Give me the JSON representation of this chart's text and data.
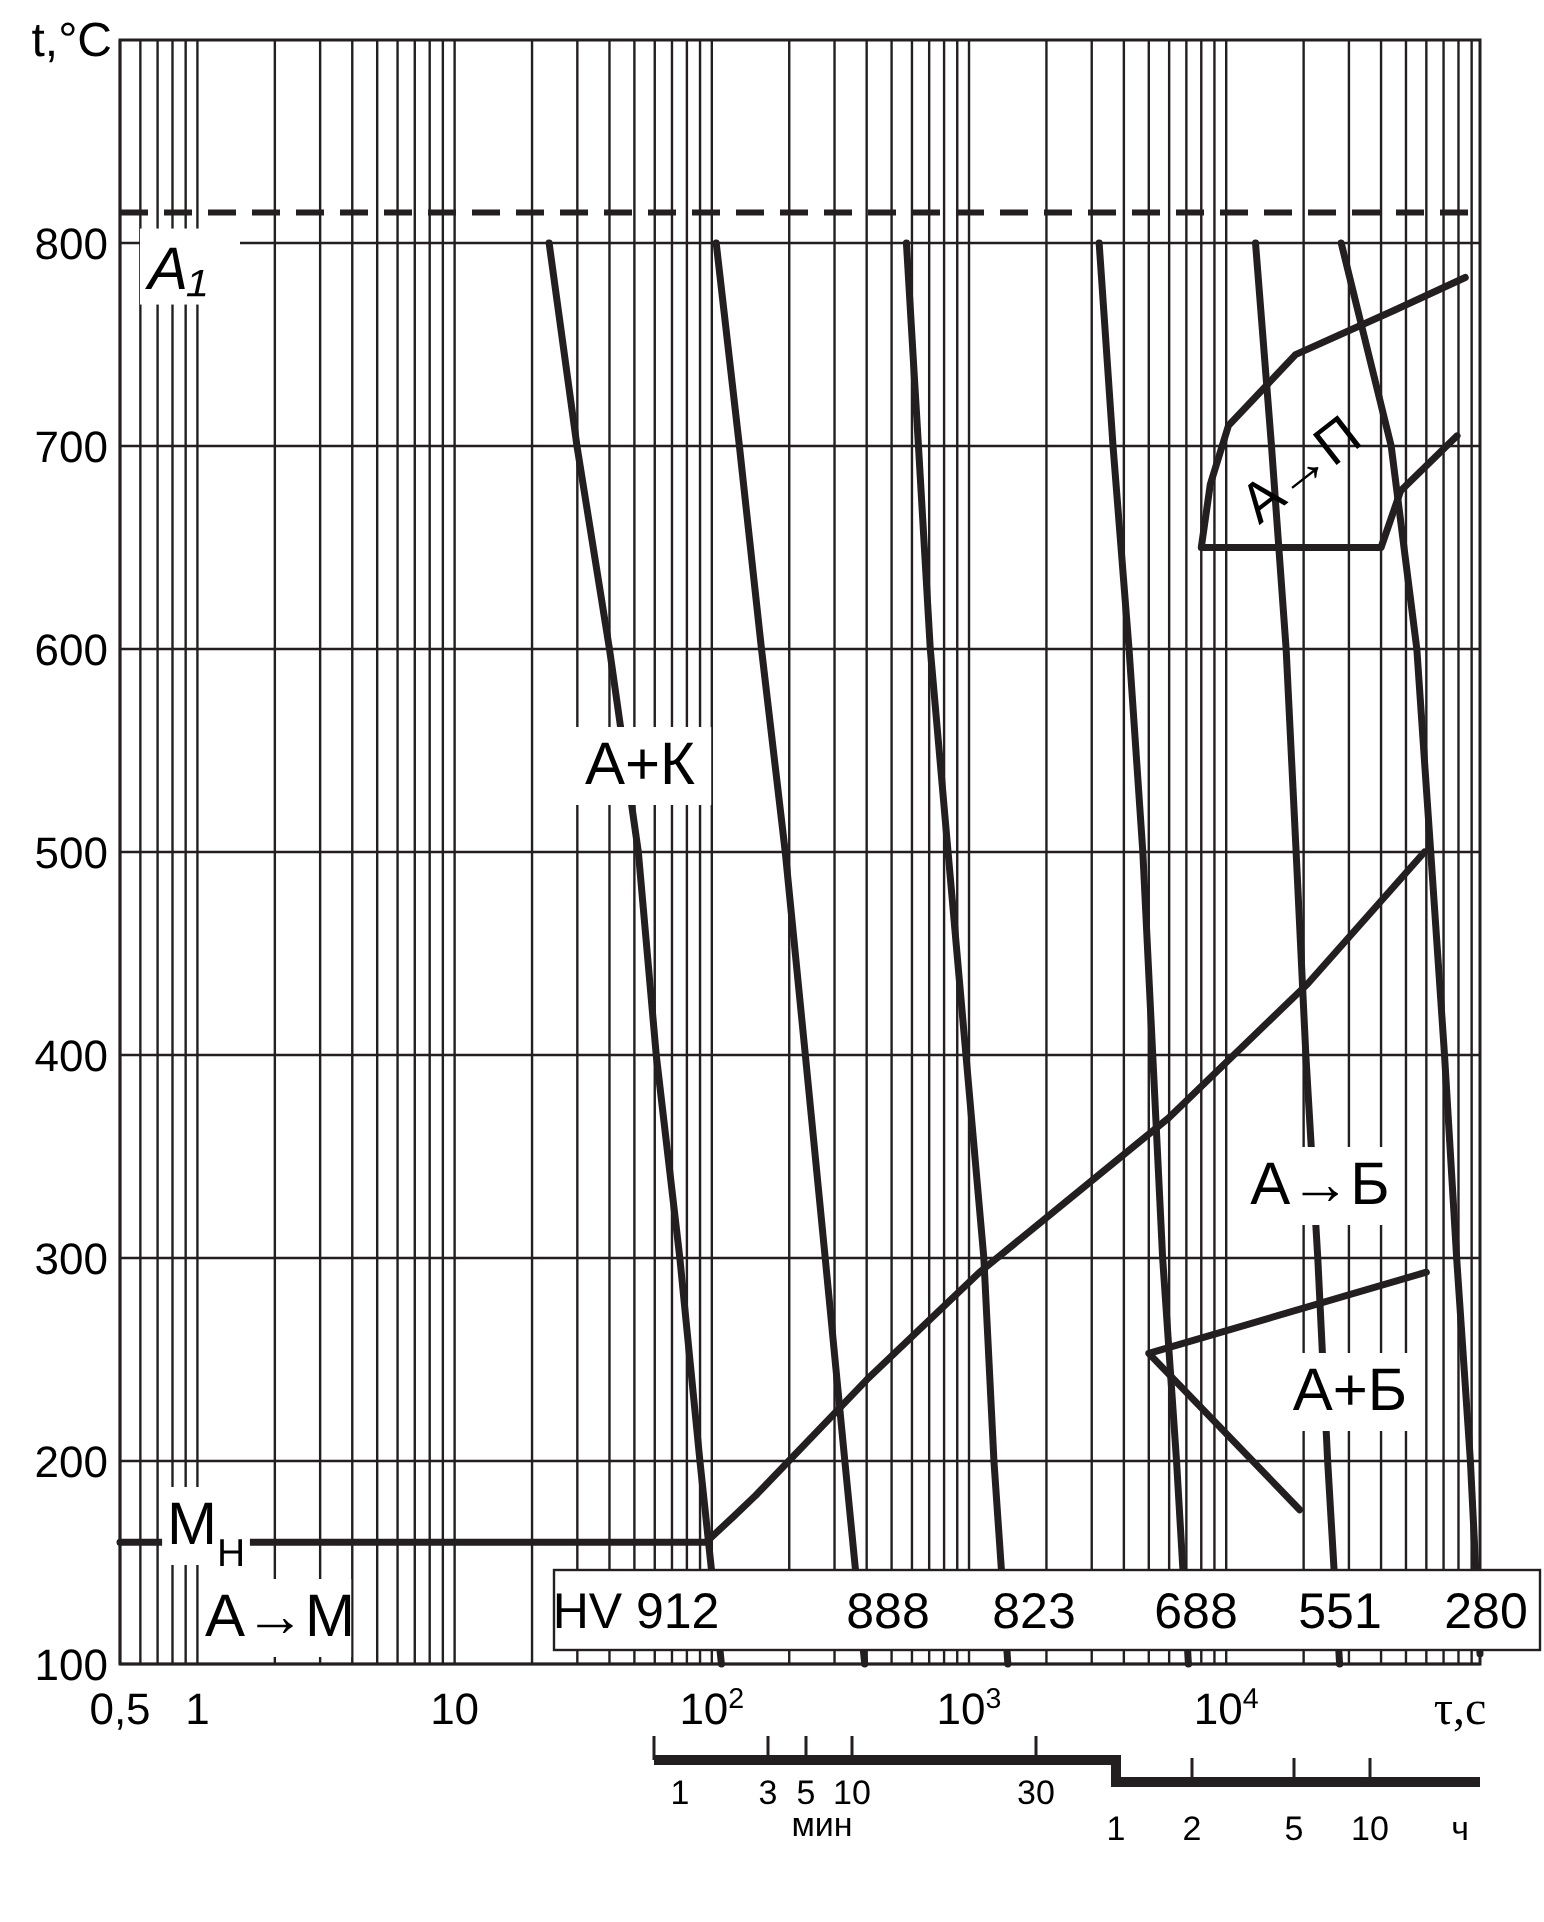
{
  "chart_data": {
    "type": "line",
    "xlabel": "τ,с",
    "ylabel": "t,°C",
    "log": "x",
    "grid": true,
    "marker": "none",
    "line_style": "solid",
    "xlim": [
      0.5,
      97000
    ],
    "ylim": [
      100,
      900
    ],
    "xticks": [
      {
        "value": 0.5,
        "label": "0,5"
      },
      {
        "value": 0.6,
        "label": null
      },
      {
        "value": 0.7,
        "label": null
      },
      {
        "value": 0.8,
        "label": null
      },
      {
        "value": 0.9,
        "label": null
      },
      1,
      {
        "value": 2,
        "label": null
      },
      {
        "value": 3,
        "label": null
      },
      {
        "value": 4,
        "label": null
      },
      {
        "value": 5,
        "label": null
      },
      {
        "value": 6,
        "label": null
      },
      {
        "value": 7,
        "label": null
      },
      {
        "value": 8,
        "label": null
      },
      {
        "value": 9,
        "label": null
      },
      10,
      {
        "value": 20,
        "label": null
      },
      {
        "value": 30,
        "label": null
      },
      {
        "value": 40,
        "label": null
      },
      {
        "value": 50,
        "label": null
      },
      {
        "value": 60,
        "label": null
      },
      {
        "value": 70,
        "label": null
      },
      {
        "value": 80,
        "label": null
      },
      {
        "value": 90,
        "label": null
      },
      {
        "value": 100,
        "label": "10$^{2}$"
      },
      {
        "value": 200,
        "label": null
      },
      {
        "value": 300,
        "label": null
      },
      {
        "value": 400,
        "label": null
      },
      {
        "value": 500,
        "label": null
      },
      {
        "value": 600,
        "label": null
      },
      {
        "value": 700,
        "label": null
      },
      {
        "value": 800,
        "label": null
      },
      {
        "value": 900,
        "label": null
      },
      {
        "value": 1000,
        "label": "10$^{3}$"
      },
      {
        "value": 2000,
        "label": null
      },
      {
        "value": 3000,
        "label": null
      },
      {
        "value": 4000,
        "label": null
      },
      {
        "value": 5000,
        "label": null
      },
      {
        "value": 6000,
        "label": null
      },
      {
        "value": 7000,
        "label": null
      },
      {
        "value": 8000,
        "label": null
      },
      {
        "value": 9000,
        "label": null
      },
      {
        "value": 10000,
        "label": "10$^{4}$"
      },
      {
        "value": 20000,
        "label": null
      },
      {
        "value": 30000,
        "label": null
      },
      {
        "value": 40000,
        "label": null
      },
      {
        "value": 50000,
        "label": null
      },
      {
        "value": 60000,
        "label": null
      },
      {
        "value": 70000,
        "label": null
      },
      {
        "value": 80000,
        "label": null
      },
      {
        "value": 90000,
        "label": null
      }
    ],
    "yticks": [
      100,
      200,
      300,
      400,
      500,
      600,
      700,
      800
    ],
    "ref_lines": [
      {
        "axis": "y",
        "value": 815,
        "label": "A₁",
        "line_style": "dashed",
        "color": "#231f20"
      }
    ],
    "series": [
      {
        "color": "#231f20",
        "x": [
          0.5,
          95,
          120,
          148,
          400,
          1100,
          2800,
          5970,
          20700,
          59000
        ],
        "values": [
          160,
          160,
          172,
          183,
          240,
          293,
          335,
          369,
          435,
          500
        ]
      },
      {
        "color": "#231f20",
        "x": [
          79000,
          47700,
          40000,
          8000,
          8670,
          10200,
          18600,
          45300,
          85000
        ],
        "values": [
          705,
          678,
          650,
          650,
          681,
          710,
          745,
          767,
          783
        ]
      },
      {
        "color": "#231f20",
        "x": [
          60000,
          5000,
          19300
        ],
        "values": [
          293,
          253,
          176
        ]
      },
      {
        "color": "#231f20",
        "x": [
          23.3,
          29.9,
          40,
          51.8,
          60.8,
          75.1,
          89.9,
          109
        ],
        "values": [
          800,
          700,
          600,
          500,
          400,
          300,
          200,
          100
        ]
      },
      {
        "color": "#231f20",
        "x": [
          104,
          128,
          156,
          193,
          231,
          276,
          329,
          393
        ],
        "values": [
          800,
          700,
          600,
          500,
          400,
          300,
          200,
          100
        ]
      },
      {
        "color": "#231f20",
        "x": [
          571,
          636,
          707,
          829,
          973,
          1142,
          1250,
          1416
        ],
        "values": [
          800,
          700,
          600,
          500,
          400,
          300,
          200,
          100
        ]
      },
      {
        "color": "#231f20",
        "x": [
          3206,
          3630,
          4190,
          4740,
          5180,
          5660,
          6410,
          7130
        ],
        "values": [
          800,
          700,
          600,
          500,
          400,
          300,
          200,
          100
        ]
      },
      {
        "color": "#231f20",
        "x": [
          13000,
          15000,
          17100,
          18700,
          20400,
          22700,
          24800,
          27600
        ],
        "values": [
          800,
          700,
          600,
          500,
          400,
          300,
          200,
          100
        ]
      },
      {
        "color": "#231f20",
        "x": [
          28000,
          43800,
          55100,
          62400,
          70600,
          78700,
          89000,
          97000
        ],
        "values": [
          800,
          700,
          600,
          500,
          400,
          300,
          200,
          105
        ]
      }
    ],
    "annotations": [
      "А+К",
      "А→П",
      "А→Б",
      "А+Б",
      "М$_{Н}$",
      "А→М",
      "HV 912",
      "888",
      "823",
      "688",
      "551",
      "280",
      "1",
      "2",
      "5",
      "10",
      "ч",
      "1",
      "3",
      "5",
      "10",
      "30",
      "мин"
    ]
  }
}
